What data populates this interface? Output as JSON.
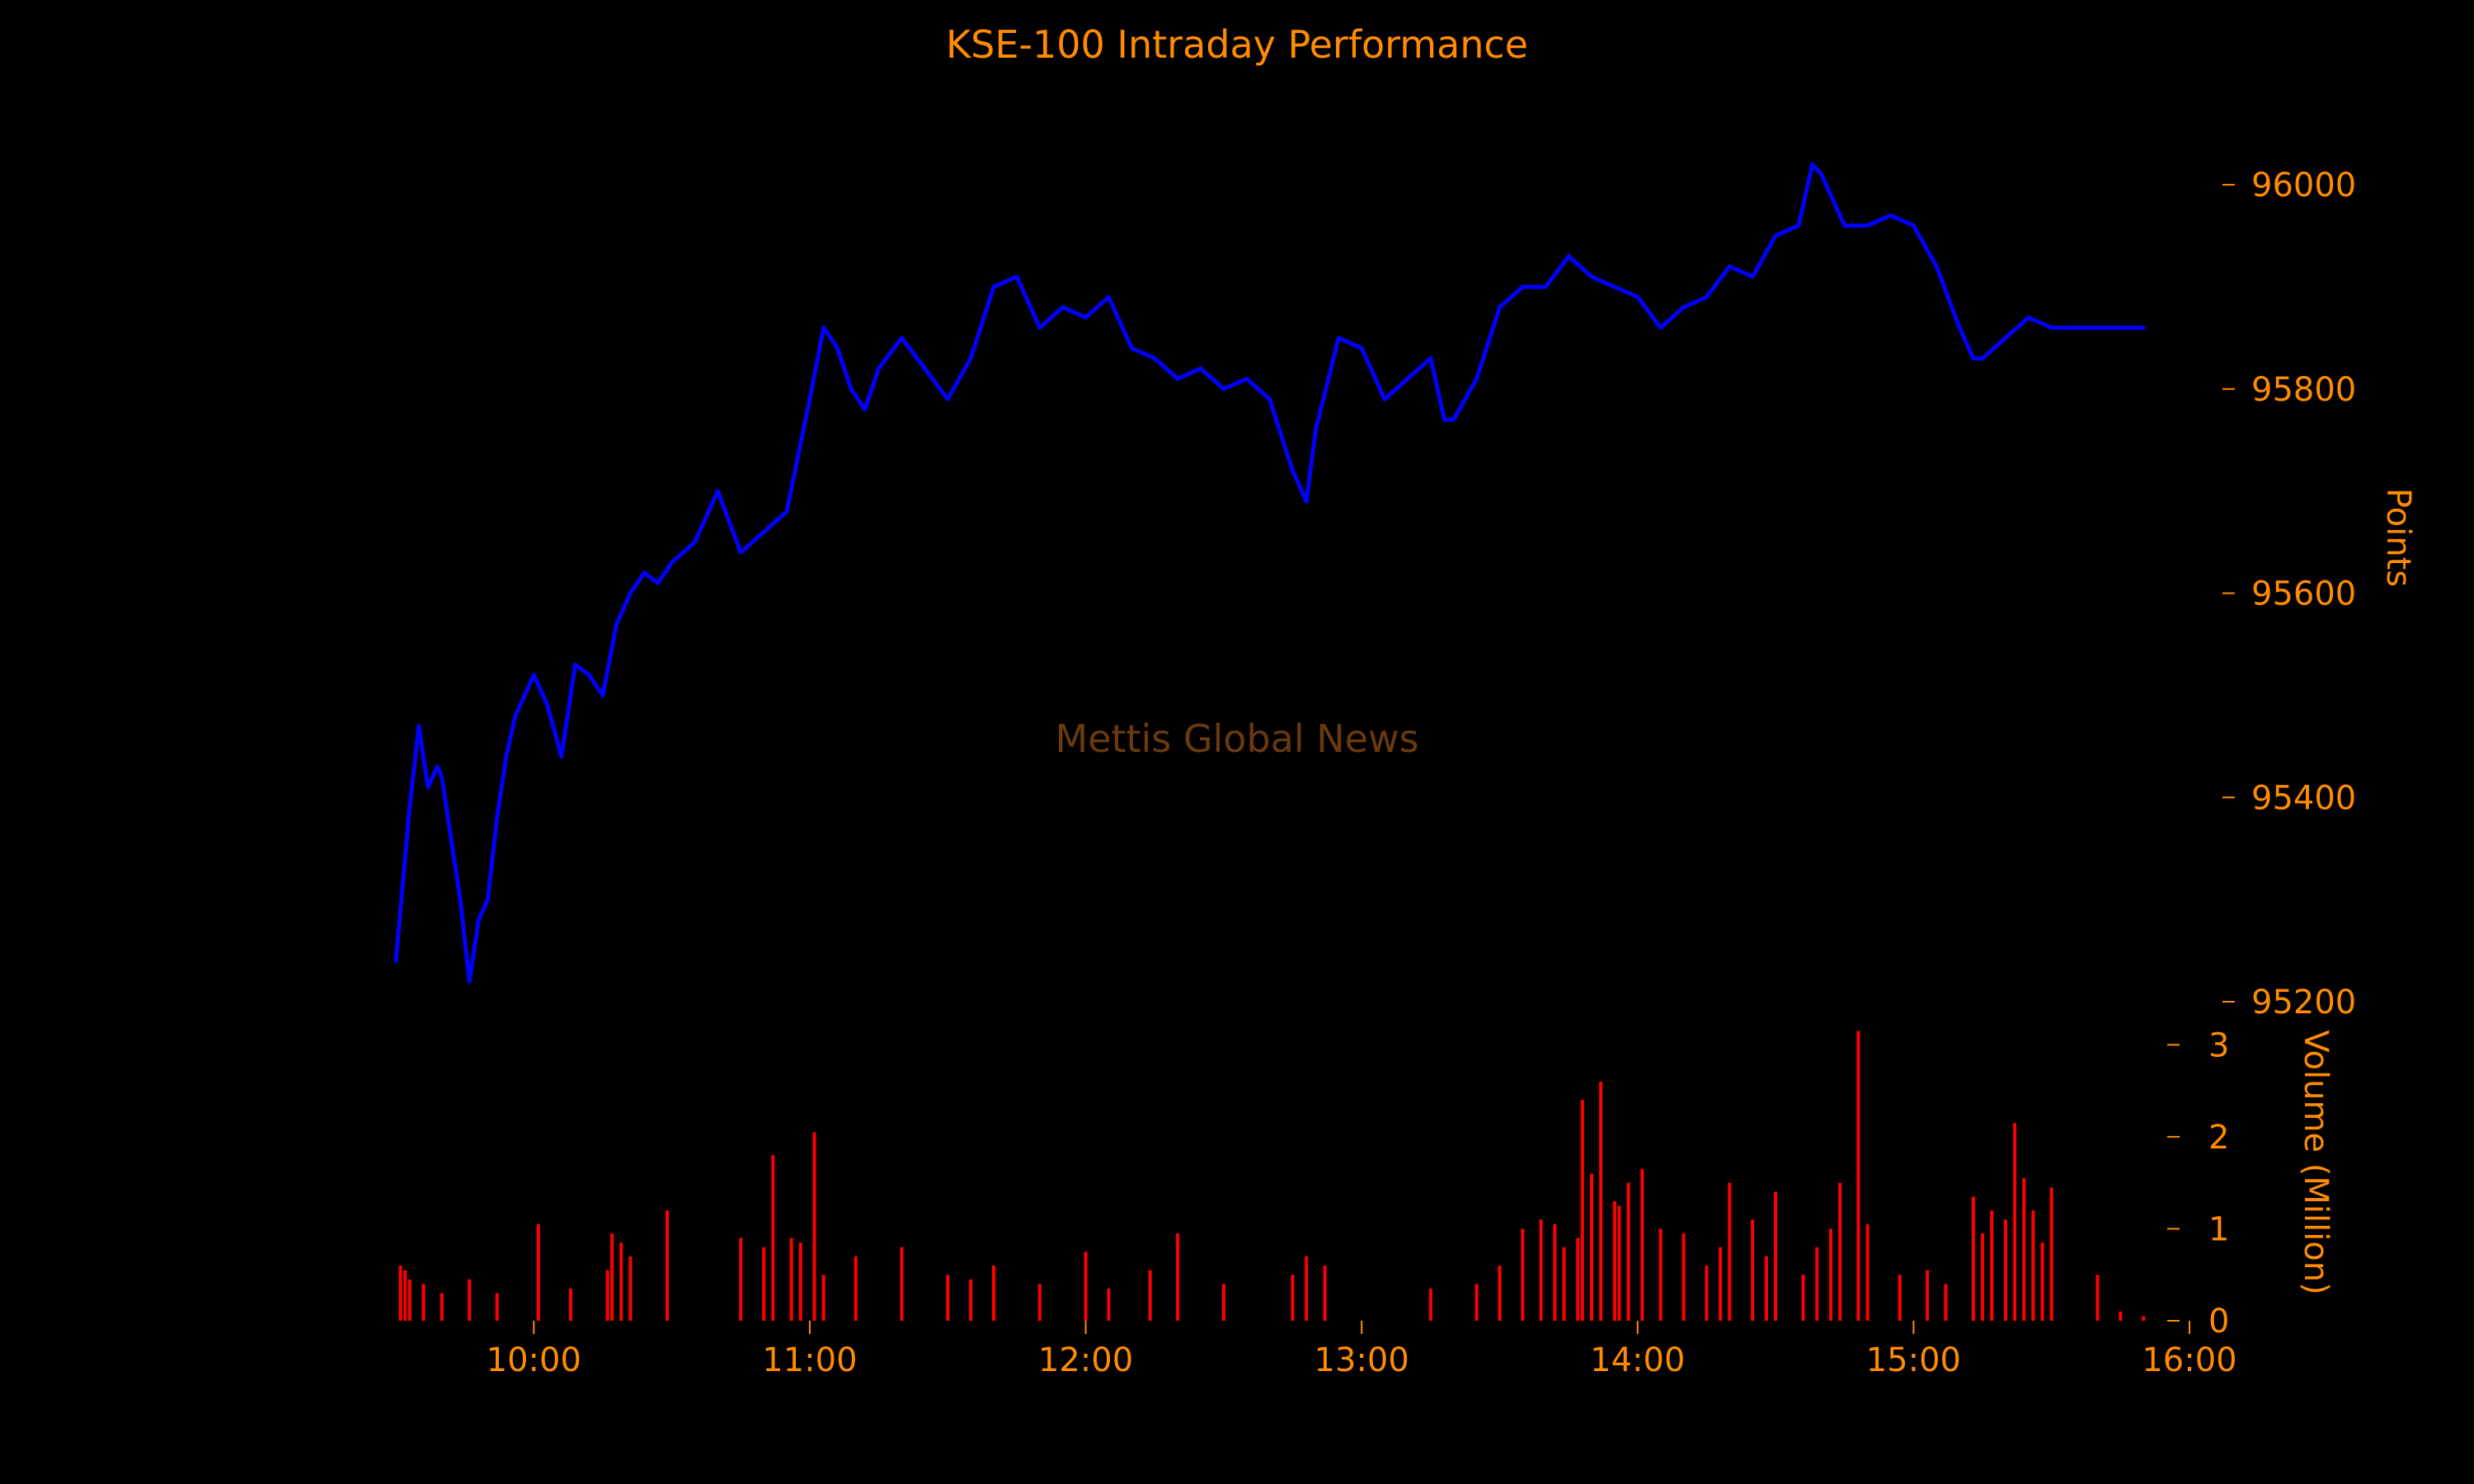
{
  "colors": {
    "background": "#000000",
    "text": "#ff8c00",
    "watermark": "#6b3a0c",
    "price_line": "#0000ff",
    "volume": "#ff0000"
  },
  "chart_data": {
    "type": "line",
    "title": "KSE-100 Intraday Performance",
    "watermark": "Mettis Global News",
    "x_ticks": [
      "10:00",
      "11:00",
      "12:00",
      "13:00",
      "14:00",
      "15:00",
      "16:00"
    ],
    "x_range": [
      "09:30",
      "16:00"
    ],
    "price": {
      "ylabel": "Points",
      "axis_position": "right",
      "ylim": [
        95200,
        96080
      ],
      "y_ticks": [
        95200,
        95400,
        95600,
        95800,
        96000
      ],
      "series": {
        "time": [
          "09:30",
          "09:33",
          "09:35",
          "09:37",
          "09:39",
          "09:40",
          "09:42",
          "09:44",
          "09:46",
          "09:48",
          "09:50",
          "09:52",
          "09:54",
          "09:56",
          "09:58",
          "10:00",
          "10:03",
          "10:06",
          "10:09",
          "10:12",
          "10:15",
          "10:18",
          "10:21",
          "10:24",
          "10:27",
          "10:30",
          "10:35",
          "10:40",
          "10:45",
          "10:50",
          "10:55",
          "11:00",
          "11:03",
          "11:06",
          "11:09",
          "11:12",
          "11:15",
          "11:20",
          "11:25",
          "11:30",
          "11:35",
          "11:40",
          "11:45",
          "11:50",
          "11:55",
          "12:00",
          "12:05",
          "12:10",
          "12:15",
          "12:20",
          "12:25",
          "12:30",
          "12:35",
          "12:40",
          "12:45",
          "12:48",
          "12:50",
          "12:55",
          "13:00",
          "13:05",
          "13:10",
          "13:15",
          "13:18",
          "13:20",
          "13:25",
          "13:30",
          "13:35",
          "13:40",
          "13:45",
          "13:50",
          "13:55",
          "14:00",
          "14:05",
          "14:10",
          "14:15",
          "14:20",
          "14:25",
          "14:30",
          "14:35",
          "14:38",
          "14:40",
          "14:45",
          "14:50",
          "14:55",
          "15:00",
          "15:05",
          "15:10",
          "15:13",
          "15:15",
          "15:20",
          "15:25",
          "15:30",
          "15:40",
          "15:50"
        ],
        "values": [
          95240,
          95390,
          95470,
          95410,
          95430,
          95420,
          95360,
          95300,
          95220,
          95280,
          95300,
          95380,
          95440,
          95480,
          95500,
          95520,
          95490,
          95440,
          95530,
          95520,
          95500,
          95570,
          95600,
          95620,
          95610,
          95630,
          95650,
          95700,
          95640,
          95660,
          95680,
          95790,
          95860,
          95840,
          95800,
          95780,
          95820,
          95850,
          95820,
          95790,
          95830,
          95900,
          95910,
          95860,
          95880,
          95870,
          95890,
          95840,
          95830,
          95810,
          95820,
          95800,
          95810,
          95790,
          95720,
          95690,
          95760,
          95850,
          95840,
          95790,
          95810,
          95830,
          95770,
          95770,
          95810,
          95880,
          95900,
          95900,
          95930,
          95910,
          95900,
          95890,
          95860,
          95880,
          95890,
          95920,
          95910,
          95950,
          95960,
          96020,
          96010,
          95960,
          95960,
          95970,
          95960,
          95920,
          95860,
          95830,
          95830,
          95850,
          95870,
          95860,
          95860,
          95860
        ]
      }
    },
    "volume": {
      "ylabel": "Volume (Million)",
      "axis_position": "right",
      "ylim": [
        0,
        3.2
      ],
      "y_ticks": [
        0,
        1,
        2,
        3
      ],
      "series": {
        "time": [
          "09:31",
          "09:32",
          "09:33",
          "09:36",
          "09:40",
          "09:46",
          "09:52",
          "10:01",
          "10:08",
          "10:16",
          "10:17",
          "10:19",
          "10:21",
          "10:29",
          "10:45",
          "10:50",
          "10:52",
          "10:56",
          "10:58",
          "11:01",
          "11:03",
          "11:10",
          "11:20",
          "11:30",
          "11:35",
          "11:40",
          "11:50",
          "12:00",
          "12:05",
          "12:14",
          "12:20",
          "12:30",
          "12:45",
          "12:48",
          "12:52",
          "13:15",
          "13:25",
          "13:30",
          "13:35",
          "13:39",
          "13:42",
          "13:44",
          "13:47",
          "13:48",
          "13:50",
          "13:52",
          "13:55",
          "13:56",
          "13:58",
          "14:01",
          "14:05",
          "14:10",
          "14:15",
          "14:18",
          "14:20",
          "14:25",
          "14:28",
          "14:30",
          "14:36",
          "14:39",
          "14:42",
          "14:44",
          "14:48",
          "14:50",
          "14:57",
          "15:03",
          "15:07",
          "15:13",
          "15:15",
          "15:17",
          "15:20",
          "15:22",
          "15:24",
          "15:26",
          "15:28",
          "15:30",
          "15:40",
          "15:45",
          "15:50"
        ],
        "values": [
          0.6,
          0.55,
          0.45,
          0.4,
          0.3,
          0.45,
          0.3,
          1.05,
          0.35,
          0.55,
          0.95,
          0.85,
          0.7,
          1.2,
          0.9,
          0.8,
          1.8,
          0.9,
          0.85,
          2.05,
          0.5,
          0.7,
          0.8,
          0.5,
          0.45,
          0.6,
          0.4,
          0.75,
          0.35,
          0.55,
          0.95,
          0.4,
          0.5,
          0.7,
          0.6,
          0.35,
          0.4,
          0.6,
          1.0,
          1.1,
          1.05,
          0.8,
          0.9,
          2.4,
          1.6,
          2.6,
          1.3,
          1.25,
          1.5,
          1.65,
          1.0,
          0.95,
          0.6,
          0.8,
          1.5,
          1.1,
          0.7,
          1.4,
          0.5,
          0.8,
          1.0,
          1.5,
          3.15,
          1.05,
          0.5,
          0.55,
          0.4,
          1.35,
          0.95,
          1.2,
          1.1,
          2.15,
          1.55,
          1.2,
          0.85,
          1.45,
          0.5,
          0.1,
          0.05
        ]
      }
    },
    "grid": false,
    "legend": "none"
  }
}
